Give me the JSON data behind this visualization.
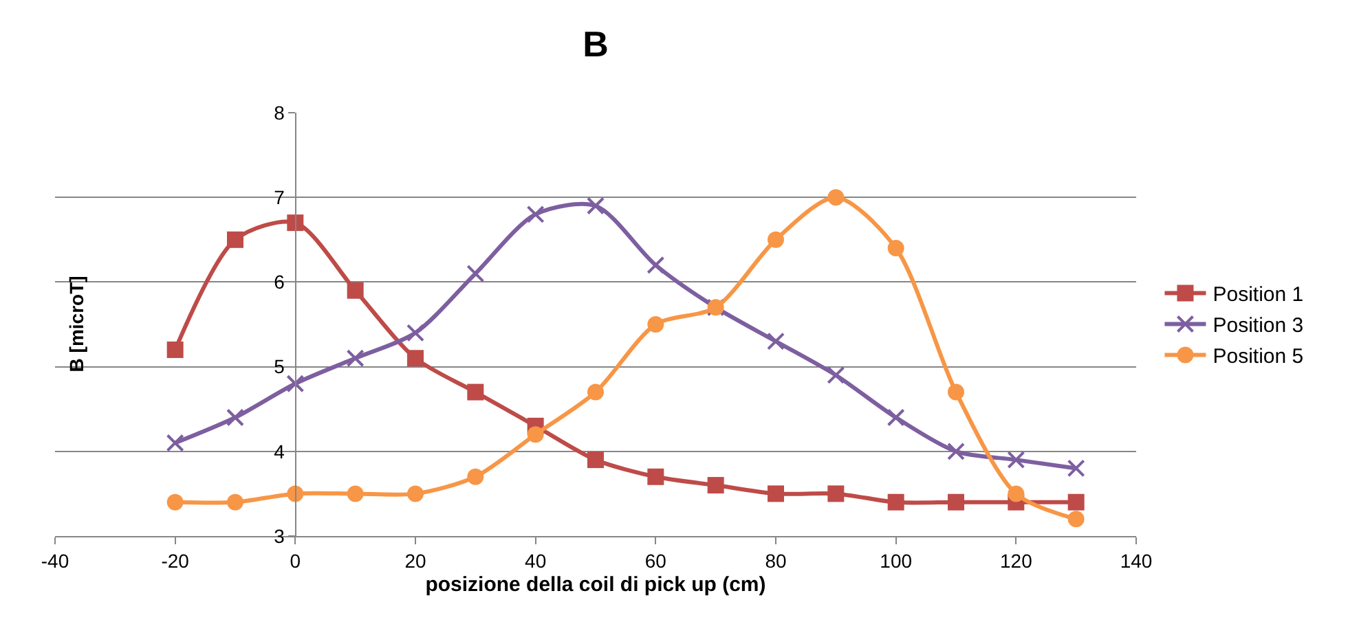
{
  "chart_data": {
    "type": "line",
    "title": "B",
    "xlabel": "posizione della coil di pick up (cm)",
    "ylabel": "B [microT]",
    "x": [
      -20,
      -10,
      0,
      10,
      20,
      30,
      40,
      50,
      60,
      70,
      80,
      90,
      100,
      110,
      120,
      130
    ],
    "xlim": [
      -40,
      140
    ],
    "xticks": [
      -40,
      -20,
      0,
      20,
      40,
      60,
      80,
      100,
      120,
      140
    ],
    "ylim": [
      3,
      8
    ],
    "yticks": [
      3,
      4,
      5,
      6,
      7,
      8
    ],
    "grid": "y",
    "legend": "right",
    "line_style": "solid",
    "series": [
      {
        "name": "Position 1",
        "color": "#be4b48",
        "marker": "square",
        "values": [
          5.2,
          6.5,
          6.7,
          5.9,
          5.1,
          4.7,
          4.3,
          3.9,
          3.7,
          3.6,
          3.5,
          3.5,
          3.4,
          3.4,
          3.4,
          3.4
        ]
      },
      {
        "name": "Position 3",
        "color": "#7d5fa0",
        "marker": "cross",
        "values": [
          4.1,
          4.4,
          4.8,
          5.1,
          5.4,
          6.1,
          6.8,
          6.9,
          6.2,
          5.7,
          5.3,
          4.9,
          4.4,
          4.0,
          3.9,
          3.8
        ]
      },
      {
        "name": "Position 5",
        "color": "#f79646",
        "marker": "circle",
        "values": [
          3.4,
          3.4,
          3.5,
          3.5,
          3.5,
          3.7,
          4.2,
          4.7,
          5.5,
          5.7,
          6.5,
          7.0,
          6.4,
          4.7,
          3.5,
          3.2
        ]
      }
    ]
  }
}
